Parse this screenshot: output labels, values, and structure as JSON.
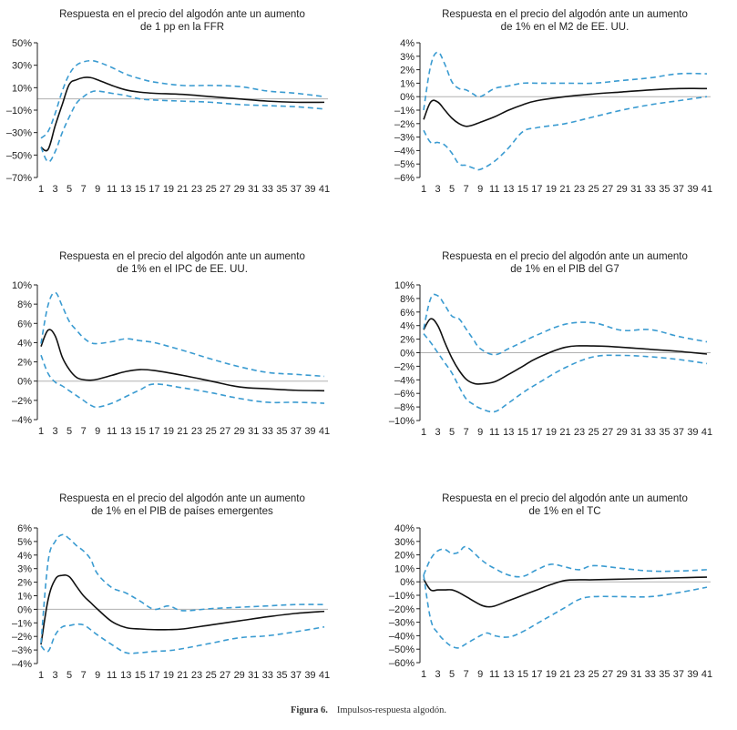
{
  "caption": {
    "label": "Figura 6.",
    "text": "Impulsos-respuesta algodón."
  },
  "colors": {
    "response": "#111111",
    "bands": "#3a9bd1",
    "zero_line": "#b0b0b0",
    "axis": "#222222"
  },
  "chart_data": [
    {
      "type": "line",
      "title": "Respuesta en el precio del algodón ante un aumento de 1 pp en la FFR",
      "title_lines": [
        "Respuesta en el precio del algodón ante un aumento",
        "de 1 pp en la FFR"
      ],
      "xlabel": "",
      "ylabel": "",
      "x_tick_labels": [
        "1",
        "3",
        "5",
        "7",
        "9",
        "11",
        "13",
        "15",
        "17",
        "19",
        "21",
        "23",
        "25",
        "27",
        "29",
        "31",
        "33",
        "35",
        "37",
        "39",
        "41"
      ],
      "y_tick_labels": [
        "50%",
        "30%",
        "10%",
        "–10%",
        "–30%",
        "–50%",
        "–70%"
      ],
      "y_ticks": [
        50,
        30,
        10,
        -10,
        -30,
        -50,
        -70
      ],
      "ylim": [
        -70,
        50
      ],
      "xlim": [
        1,
        41
      ],
      "grid": false,
      "zero_line": true,
      "x": [
        1,
        2,
        3,
        4,
        5,
        6,
        7,
        8,
        9,
        11,
        13,
        15,
        17,
        21,
        25,
        29,
        33,
        37,
        41
      ],
      "series": [
        {
          "name": "Respuesta",
          "style": "solid",
          "values": [
            -43,
            -45,
            -24,
            -5,
            13,
            17,
            19,
            19,
            17,
            12,
            8,
            6,
            5,
            4,
            2,
            0,
            -2,
            -3,
            -3
          ]
        },
        {
          "name": "Banda superior",
          "style": "dashed",
          "values": [
            -35,
            -29,
            -13,
            7,
            22,
            30,
            33,
            34,
            33,
            28,
            22,
            18,
            15,
            12,
            12,
            11,
            7,
            5,
            2
          ]
        },
        {
          "name": "Banda inferior",
          "style": "dashed",
          "values": [
            -43,
            -56,
            -47,
            -30,
            -16,
            -4,
            2,
            6,
            7,
            5,
            3,
            0,
            -1,
            -2,
            -3,
            -5,
            -6,
            -7,
            -9
          ]
        }
      ]
    },
    {
      "type": "line",
      "title": "Respuesta en el precio del algodón ante un aumento de 1% en el M2 de EE. UU.",
      "title_lines": [
        "Respuesta en el precio del algodón ante un aumento",
        "de 1% en el M2 de EE. UU."
      ],
      "xlabel": "",
      "ylabel": "",
      "x_tick_labels": [
        "1",
        "3",
        "5",
        "7",
        "9",
        "11",
        "13",
        "15",
        "17",
        "19",
        "21",
        "23",
        "25",
        "27",
        "29",
        "31",
        "33",
        "35",
        "37",
        "39",
        "41"
      ],
      "y_tick_labels": [
        "4%",
        "3%",
        "2%",
        "1%",
        "0%",
        "–1%",
        "–2%",
        "–3%",
        "–4%",
        "–5%",
        "–6%"
      ],
      "y_ticks": [
        4,
        3,
        2,
        1,
        0,
        -1,
        -2,
        -3,
        -4,
        -5,
        -6
      ],
      "ylim": [
        -6,
        4
      ],
      "xlim": [
        1,
        41
      ],
      "grid": false,
      "zero_line": true,
      "x": [
        1,
        2,
        3,
        4,
        5,
        6,
        7,
        8,
        9,
        11,
        13,
        15,
        17,
        21,
        25,
        29,
        33,
        37,
        41
      ],
      "series": [
        {
          "name": "Respuesta",
          "style": "solid",
          "values": [
            -1.7,
            -0.4,
            -0.4,
            -1.0,
            -1.6,
            -2.0,
            -2.2,
            -2.1,
            -1.9,
            -1.5,
            -1.0,
            -0.6,
            -0.3,
            0.0,
            0.2,
            0.35,
            0.5,
            0.6,
            0.6
          ]
        },
        {
          "name": "Banda superior",
          "style": "dashed",
          "values": [
            -1.0,
            2.3,
            3.3,
            2.4,
            1.1,
            0.6,
            0.5,
            0.2,
            0.0,
            0.6,
            0.8,
            1.0,
            1.0,
            1.0,
            1.0,
            1.2,
            1.4,
            1.7,
            1.7
          ]
        },
        {
          "name": "Banda inferior",
          "style": "dashed",
          "values": [
            -2.5,
            -3.4,
            -3.4,
            -3.6,
            -4.2,
            -5.0,
            -5.1,
            -5.3,
            -5.4,
            -4.8,
            -3.8,
            -2.6,
            -2.3,
            -2.0,
            -1.5,
            -1.0,
            -0.6,
            -0.3,
            0.0
          ]
        }
      ]
    },
    {
      "type": "line",
      "title": "Respuesta en el precio del algodón ante un aumento de 1% en el IPC de EE. UU.",
      "title_lines": [
        "Respuesta en el precio del algodón ante un aumento",
        "de 1% en el IPC de EE. UU."
      ],
      "xlabel": "",
      "ylabel": "",
      "x_tick_labels": [
        "1",
        "3",
        "5",
        "7",
        "9",
        "11",
        "13",
        "15",
        "17",
        "19",
        "21",
        "23",
        "25",
        "27",
        "29",
        "31",
        "33",
        "35",
        "37",
        "39",
        "41"
      ],
      "y_tick_labels": [
        "10%",
        "8%",
        "6%",
        "4%",
        "2%",
        "0%",
        "–2%",
        "–4%"
      ],
      "y_ticks": [
        10,
        8,
        6,
        4,
        2,
        0,
        -2,
        -4
      ],
      "ylim": [
        -4,
        10
      ],
      "xlim": [
        1,
        41
      ],
      "grid": false,
      "zero_line": true,
      "x": [
        1,
        2,
        3,
        4,
        5,
        6,
        7,
        8,
        9,
        11,
        13,
        15,
        17,
        21,
        25,
        29,
        33,
        37,
        41
      ],
      "series": [
        {
          "name": "Respuesta",
          "style": "solid",
          "values": [
            3.6,
            5.3,
            4.7,
            2.5,
            1.2,
            0.4,
            0.15,
            0.1,
            0.2,
            0.6,
            1.0,
            1.2,
            1.1,
            0.6,
            0.0,
            -0.6,
            -0.8,
            -0.95,
            -1.0
          ]
        },
        {
          "name": "Banda superior",
          "style": "dashed",
          "values": [
            3.9,
            7.9,
            9.2,
            7.8,
            6.2,
            5.3,
            4.5,
            4.0,
            3.9,
            4.1,
            4.4,
            4.2,
            4.0,
            3.2,
            2.3,
            1.5,
            0.9,
            0.7,
            0.5
          ]
        },
        {
          "name": "Banda inferior",
          "style": "dashed",
          "values": [
            2.7,
            0.8,
            -0.1,
            -0.5,
            -1.0,
            -1.5,
            -2.0,
            -2.5,
            -2.7,
            -2.3,
            -1.6,
            -0.9,
            -0.3,
            -0.7,
            -1.2,
            -1.8,
            -2.2,
            -2.2,
            -2.3
          ]
        }
      ]
    },
    {
      "type": "line",
      "title": "Respuesta en el precio del algodón ante un aumento de 1% en el PIB del G7",
      "title_lines": [
        "Respuesta en el precio del algodón ante un aumento",
        "de 1% en el PIB del G7"
      ],
      "xlabel": "",
      "ylabel": "",
      "x_tick_labels": [
        "1",
        "3",
        "5",
        "7",
        "9",
        "11",
        "13",
        "15",
        "17",
        "19",
        "21",
        "23",
        "25",
        "27",
        "29",
        "31",
        "33",
        "35",
        "37",
        "39",
        "41"
      ],
      "y_tick_labels": [
        "10%",
        "8%",
        "6%",
        "4%",
        "2%",
        "0%",
        "–2%",
        "–4%",
        "–6%",
        "–8%",
        "–10%"
      ],
      "y_ticks": [
        10,
        8,
        6,
        4,
        2,
        0,
        -2,
        -4,
        -6,
        -8,
        -10
      ],
      "ylim": [
        -10,
        10
      ],
      "xlim": [
        1,
        41
      ],
      "grid": false,
      "zero_line": true,
      "x": [
        1,
        2,
        3,
        4,
        5,
        6,
        7,
        8,
        9,
        11,
        13,
        15,
        17,
        21,
        25,
        29,
        33,
        37,
        41
      ],
      "series": [
        {
          "name": "Respuesta",
          "style": "solid",
          "values": [
            3.4,
            5.0,
            4.0,
            1.5,
            -0.8,
            -2.6,
            -3.9,
            -4.5,
            -4.6,
            -4.3,
            -3.2,
            -2.0,
            -0.8,
            0.8,
            1.0,
            0.8,
            0.5,
            0.2,
            -0.2
          ]
        },
        {
          "name": "Banda superior",
          "style": "dashed",
          "values": [
            3.5,
            8.0,
            8.4,
            7.0,
            5.4,
            5.0,
            3.5,
            2.0,
            0.6,
            -0.3,
            0.6,
            1.6,
            2.6,
            4.2,
            4.4,
            3.3,
            3.4,
            2.4,
            1.6
          ]
        },
        {
          "name": "Banda inferior",
          "style": "dashed",
          "values": [
            2.8,
            1.5,
            0.0,
            -1.5,
            -3.0,
            -5.0,
            -6.8,
            -7.6,
            -8.2,
            -8.7,
            -7.4,
            -5.9,
            -4.6,
            -2.2,
            -0.6,
            -0.4,
            -0.6,
            -1.0,
            -1.6
          ]
        }
      ]
    },
    {
      "type": "line",
      "title": "Respuesta en el precio del algodón ante un aumento de 1% en el PIB de países emergentes",
      "title_lines": [
        "Respuesta en el precio del algodón ante un aumento",
        "de 1% en el PIB de países emergentes"
      ],
      "xlabel": "",
      "ylabel": "",
      "x_tick_labels": [
        "1",
        "3",
        "5",
        "7",
        "9",
        "11",
        "13",
        "15",
        "17",
        "19",
        "21",
        "23",
        "25",
        "27",
        "29",
        "31",
        "33",
        "35",
        "37",
        "39",
        "41"
      ],
      "y_tick_labels": [
        "6%",
        "5%",
        "4%",
        "3%",
        "2%",
        "1%",
        "0%",
        "–1%",
        "–2%",
        "–3%",
        "–4%"
      ],
      "y_ticks": [
        6,
        5,
        4,
        3,
        2,
        1,
        0,
        -1,
        -2,
        -3,
        -4
      ],
      "ylim": [
        -4,
        6
      ],
      "xlim": [
        1,
        41
      ],
      "grid": false,
      "zero_line": true,
      "x": [
        1,
        2,
        3,
        4,
        5,
        6,
        7,
        8,
        9,
        11,
        13,
        15,
        17,
        19,
        21,
        25,
        29,
        33,
        37,
        41
      ],
      "series": [
        {
          "name": "Respuesta",
          "style": "solid",
          "values": [
            -2.6,
            0.7,
            2.2,
            2.5,
            2.4,
            1.7,
            1.0,
            0.5,
            0.0,
            -0.9,
            -1.35,
            -1.45,
            -1.5,
            -1.5,
            -1.45,
            -1.15,
            -0.85,
            -0.55,
            -0.3,
            -0.15
          ]
        },
        {
          "name": "Banda superior",
          "style": "dashed",
          "values": [
            -2.5,
            3.5,
            5.0,
            5.5,
            5.2,
            4.7,
            4.3,
            3.7,
            2.6,
            1.6,
            1.2,
            0.6,
            0.0,
            0.25,
            -0.1,
            0.05,
            0.15,
            0.25,
            0.35,
            0.35
          ]
        },
        {
          "name": "Banda inferior",
          "style": "dashed",
          "values": [
            -2.7,
            -3.1,
            -1.9,
            -1.3,
            -1.2,
            -1.1,
            -1.15,
            -1.5,
            -1.9,
            -2.6,
            -3.2,
            -3.2,
            -3.1,
            -3.05,
            -2.9,
            -2.5,
            -2.1,
            -1.95,
            -1.65,
            -1.3
          ]
        }
      ]
    },
    {
      "type": "line",
      "title": "Respuesta en el precio del algodón ante un aumento de 1% en el TC",
      "title_lines": [
        "Respuesta en el precio del algodón ante un aumento",
        "de 1% en el TC"
      ],
      "xlabel": "",
      "ylabel": "",
      "x_tick_labels": [
        "1",
        "3",
        "5",
        "7",
        "9",
        "11",
        "13",
        "15",
        "17",
        "19",
        "21",
        "23",
        "25",
        "27",
        "29",
        "31",
        "33",
        "35",
        "37",
        "39",
        "41"
      ],
      "y_tick_labels": [
        "40%",
        "30%",
        "20%",
        "10%",
        "0%",
        "–10%",
        "–20%",
        "–30%",
        "–40%",
        "–50%",
        "–60%"
      ],
      "y_ticks": [
        40,
        30,
        20,
        10,
        0,
        -10,
        -20,
        -30,
        -40,
        -50,
        -60
      ],
      "ylim": [
        -60,
        40
      ],
      "xlim": [
        1,
        41
      ],
      "grid": false,
      "zero_line": true,
      "x": [
        1,
        2,
        3,
        4,
        5,
        6,
        7,
        9,
        10,
        11,
        13,
        15,
        17,
        19,
        21,
        23,
        25,
        29,
        33,
        37,
        41
      ],
      "series": [
        {
          "name": "Respuesta",
          "style": "solid",
          "values": [
            2,
            -6,
            -6,
            -6,
            -6,
            -8,
            -11,
            -17,
            -18.5,
            -18,
            -14,
            -10,
            -6,
            -2,
            1,
            1.5,
            1.5,
            2,
            2.5,
            3,
            3.5
          ]
        },
        {
          "name": "Banda superior",
          "style": "dashed",
          "values": [
            5,
            17,
            23,
            24,
            21,
            22,
            26,
            17,
            13,
            10,
            5,
            4,
            9,
            13,
            11,
            9,
            12,
            10,
            8,
            8,
            9
          ]
        },
        {
          "name": "Banda inferior",
          "style": "dashed",
          "values": [
            5,
            -28,
            -38,
            -44,
            -48,
            -49,
            -46,
            -40,
            -38,
            -40,
            -41,
            -37,
            -31,
            -25,
            -19,
            -13,
            -11,
            -11,
            -11,
            -8,
            -4
          ]
        }
      ]
    }
  ]
}
